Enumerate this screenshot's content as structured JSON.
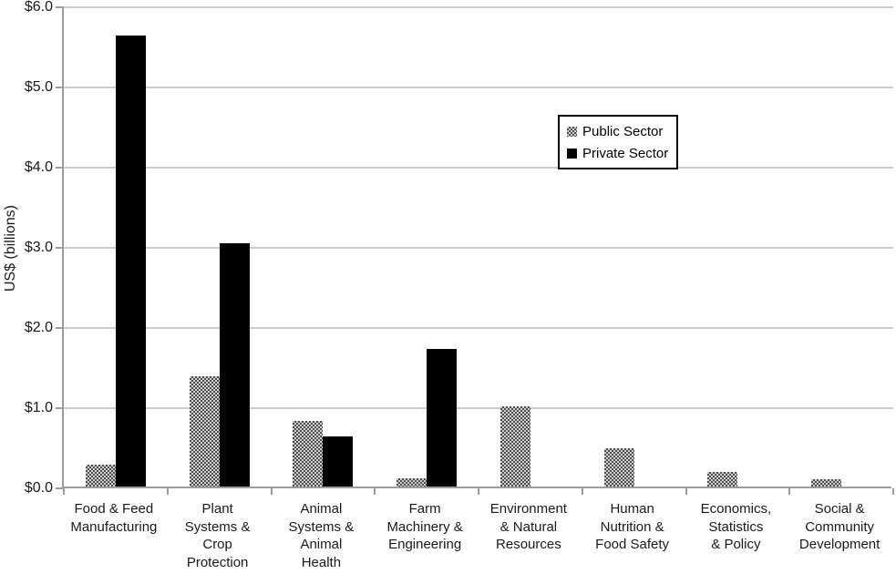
{
  "chart_data": {
    "type": "bar",
    "title": "",
    "xlabel": "",
    "ylabel": "US$ (billions)",
    "ylim": [
      0,
      6
    ],
    "ytick_interval": 1.0,
    "yticks": [
      "$6.0",
      "$5.0",
      "$4.0",
      "$3.0",
      "$2.0",
      "$1.0",
      "$0.0"
    ],
    "grid": true,
    "legend_position": "inside-upper-right-of-center",
    "categories": [
      "Food & Feed\nManufacturing",
      "Plant\nSystems &\nCrop\nProtection",
      "Animal\nSystems &\nAnimal\nHealth",
      "Farm\nMachinery &\nEngineering",
      "Environment\n& Natural\nResources",
      "Human\nNutrition &\nFood Safety",
      "Economics,\nStatistics\n& Policy",
      "Social &\nCommunity\nDevelopment"
    ],
    "series": [
      {
        "name": "Public Sector",
        "fill": "gray-checker-pattern",
        "values": [
          0.27,
          1.38,
          0.82,
          0.1,
          1.0,
          0.48,
          0.18,
          0.09
        ]
      },
      {
        "name": "Private Sector",
        "fill": "solid-black",
        "values": [
          5.62,
          3.03,
          0.62,
          1.72,
          0,
          0,
          0,
          0
        ]
      }
    ]
  },
  "colors": {
    "private_bar": "#000000",
    "public_pattern_dark": "#4d4d4d",
    "public_pattern_light": "#cfcfcf",
    "gridline": "#c9c9c9",
    "axis": "#9c9c9c",
    "text": "#1a1a1a",
    "legend_border": "#000000",
    "background": "#ffffff"
  }
}
